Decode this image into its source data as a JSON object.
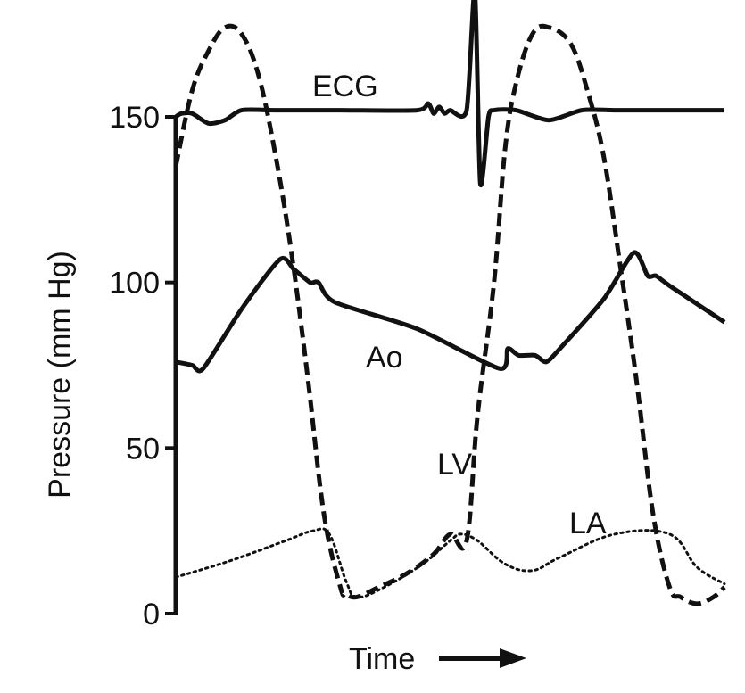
{
  "chart_data": {
    "type": "line",
    "title": "",
    "xlabel": "Time",
    "ylabel": "Pressure (mm Hg)",
    "x_unit": "relative time (cardiac cycles)",
    "xlim": [
      0,
      1.0
    ],
    "ylim": [
      0,
      150
    ],
    "yticks": [
      0,
      50,
      100,
      150
    ],
    "grid": false,
    "legend": "none",
    "series": [
      {
        "name": "ECG",
        "style": "solid",
        "color": "#111111",
        "x": [
          0,
          0.01,
          0.03,
          0.06,
          0.09,
          0.12,
          0.18,
          0.3,
          0.44,
          0.46,
          0.47,
          0.48,
          0.49,
          0.5,
          0.53,
          0.545,
          0.555,
          0.57,
          0.58,
          0.62,
          0.68,
          0.74,
          0.8,
          0.9,
          1.0
        ],
        "y": [
          150,
          151,
          151,
          148,
          149,
          152,
          152,
          152,
          152,
          154,
          151,
          153,
          151,
          152,
          152,
          188,
          130,
          150,
          152,
          152,
          149,
          152,
          152,
          152,
          152
        ]
      },
      {
        "name": "Ao",
        "style": "solid",
        "color": "#111111",
        "x": [
          0,
          0.03,
          0.05,
          0.12,
          0.19,
          0.215,
          0.245,
          0.26,
          0.29,
          0.44,
          0.59,
          0.605,
          0.625,
          0.655,
          0.675,
          0.7,
          0.78,
          0.835,
          0.86,
          0.875,
          0.9,
          1.0
        ],
        "y": [
          76,
          75,
          74,
          92,
          107,
          104,
          100,
          100,
          94,
          86,
          74,
          80,
          78,
          78,
          76,
          80,
          95,
          109,
          102,
          102,
          99,
          88
        ]
      },
      {
        "name": "LV",
        "style": "dashed",
        "color": "#111111",
        "x": [
          0,
          0.03,
          0.06,
          0.09,
          0.12,
          0.15,
          0.18,
          0.21,
          0.24,
          0.27,
          0.3,
          0.31,
          0.33,
          0.37,
          0.42,
          0.47,
          0.5,
          0.53,
          0.55,
          0.58,
          0.6,
          0.62,
          0.65,
          0.68,
          0.72,
          0.75,
          0.78,
          0.81,
          0.84,
          0.87,
          0.9,
          0.92,
          0.95,
          0.98,
          1.0
        ],
        "y": [
          135,
          158,
          170,
          177,
          175,
          163,
          140,
          110,
          72,
          30,
          8,
          6,
          5,
          8,
          12,
          18,
          24,
          22,
          60,
          100,
          140,
          160,
          175,
          177,
          172,
          158,
          138,
          105,
          70,
          30,
          8,
          5,
          3,
          5,
          8
        ]
      },
      {
        "name": "LA",
        "style": "dotted",
        "color": "#111111",
        "x": [
          0,
          0.1,
          0.2,
          0.25,
          0.28,
          0.31,
          0.33,
          0.38,
          0.45,
          0.5,
          0.52,
          0.55,
          0.6,
          0.65,
          0.7,
          0.8,
          0.9,
          0.95,
          1.0
        ],
        "y": [
          11,
          16,
          22,
          25,
          24,
          10,
          5,
          8,
          15,
          22,
          24,
          22,
          15,
          13,
          17,
          24,
          24,
          14,
          9
        ]
      }
    ],
    "annotations": [
      {
        "text": "ECG",
        "series": "ECG"
      },
      {
        "text": "Ao",
        "series": "Ao"
      },
      {
        "text": "LV",
        "series": "LV"
      },
      {
        "text": "LA",
        "series": "LA"
      }
    ],
    "x_axis_arrow": true
  }
}
